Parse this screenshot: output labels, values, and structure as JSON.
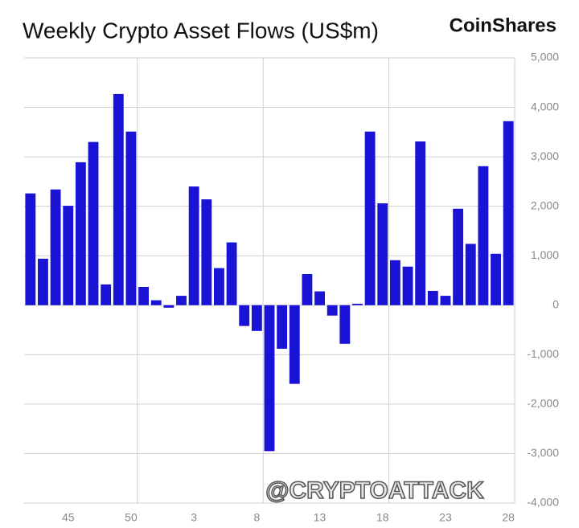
{
  "chart_data": {
    "type": "bar",
    "title": "Weekly Crypto Asset Flows (US$m)",
    "brand": "CoinShares",
    "watermark": "@CRYPTOATTACK",
    "categories": [
      null,
      null,
      null,
      "45",
      null,
      null,
      null,
      null,
      "50",
      null,
      null,
      null,
      null,
      "3",
      null,
      null,
      null,
      null,
      "8",
      null,
      null,
      null,
      null,
      "13",
      null,
      null,
      null,
      null,
      "18",
      null,
      null,
      null,
      null,
      "23",
      null,
      null,
      null,
      null,
      "28"
    ],
    "values": [
      2260,
      940,
      2340,
      2010,
      2890,
      3300,
      420,
      4270,
      3510,
      370,
      100,
      -50,
      190,
      2400,
      2140,
      750,
      1270,
      -420,
      -520,
      -2950,
      -880,
      -1590,
      630,
      280,
      -210,
      -780,
      30,
      3510,
      2060,
      910,
      780,
      3310,
      290,
      190,
      1950,
      1240,
      2810,
      1040,
      3720
    ],
    "color": "#1a12d4",
    "ylim": [
      -4000,
      5000
    ],
    "yticks": [
      {
        "value": -4000,
        "label": "-4,000"
      },
      {
        "value": -3000,
        "label": "-3,000"
      },
      {
        "value": -2000,
        "label": "-2,000"
      },
      {
        "value": -1000,
        "label": "-1,000"
      },
      0,
      {
        "value": 1000,
        "label": "1,000"
      },
      {
        "value": 2000,
        "label": "2,000"
      },
      {
        "value": 3000,
        "label": "3,000"
      },
      {
        "value": 4000,
        "label": "4,000"
      },
      {
        "value": 5000,
        "label": "5,000"
      }
    ],
    "grid": true
  }
}
